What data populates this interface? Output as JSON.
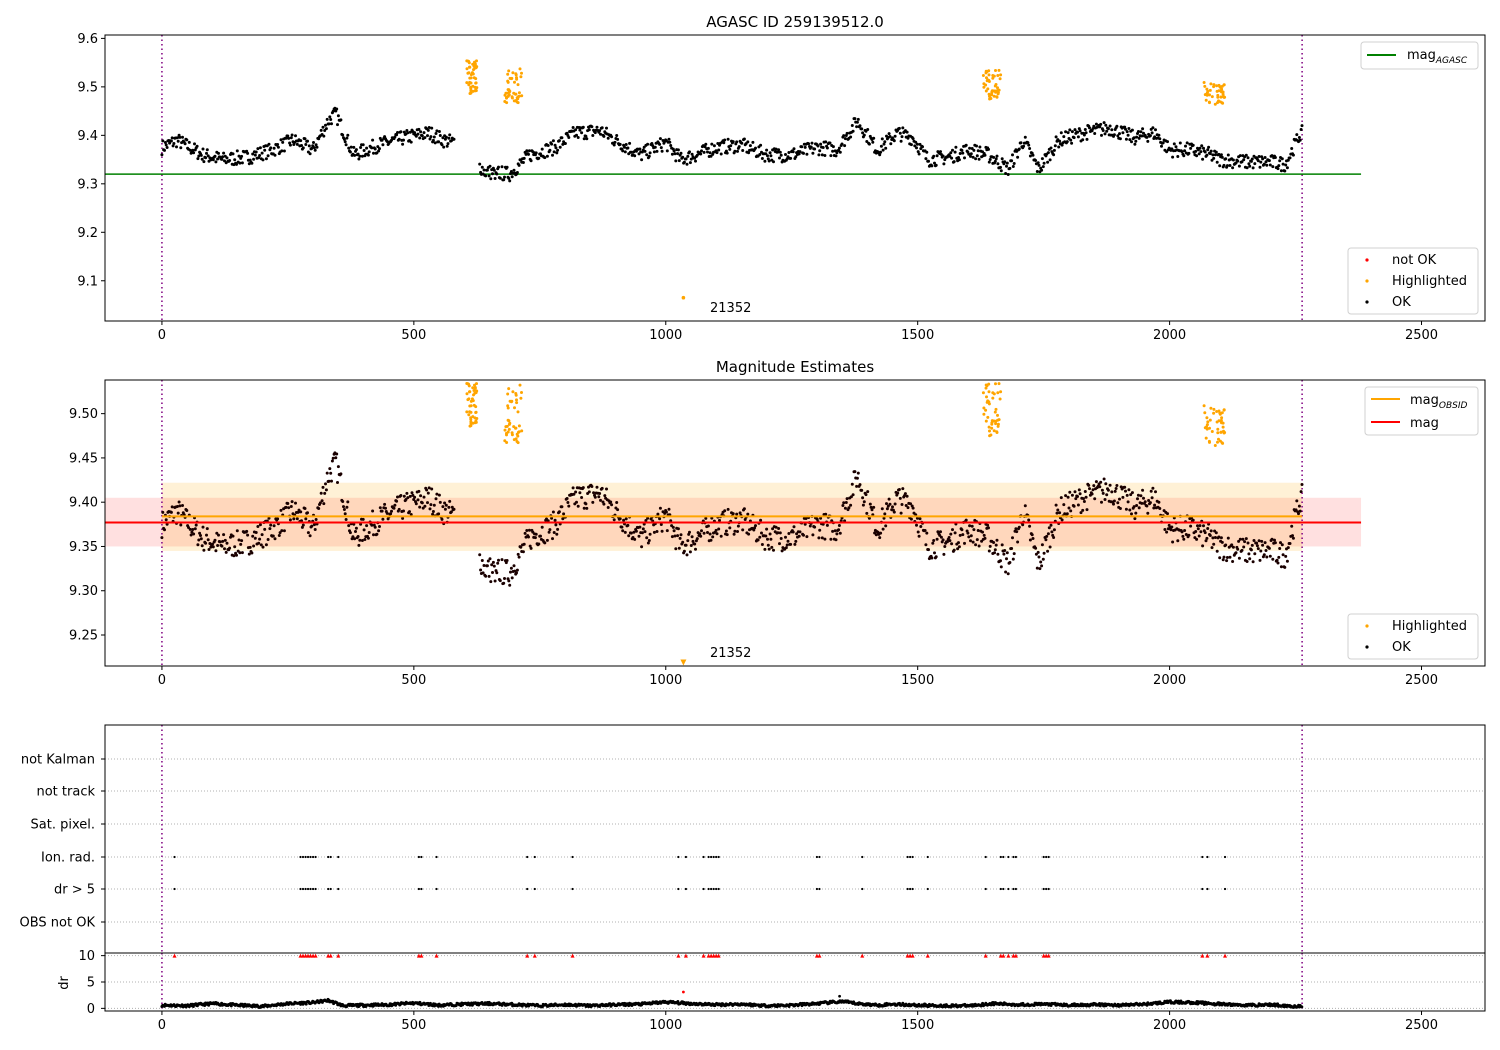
{
  "chart_data": [
    {
      "type": "scatter",
      "title": "AGASC ID 259139512.0",
      "xlabel": "",
      "ylabel": "",
      "xlim": [
        -113,
        2626
      ],
      "ylim": [
        9.017,
        9.607
      ],
      "xticks": [
        0,
        500,
        1000,
        1500,
        2000,
        2500
      ],
      "yticks": [
        9.1,
        9.2,
        9.3,
        9.4,
        9.5,
        9.6
      ],
      "ytick_labels": [
        "9.1",
        "9.2",
        "9.3",
        "9.4",
        "9.5",
        "9.6"
      ],
      "grid": false,
      "vlines": [
        0,
        2263
      ],
      "hline": {
        "name": "mag_AGASC",
        "y": 9.32,
        "x": [
          -113,
          2380
        ],
        "color": "#008000"
      },
      "annotation": {
        "text": "21352",
        "x": 1085,
        "y": 9.046
      },
      "legend_top": {
        "position": "top-right",
        "entries": [
          {
            "label": "mag",
            "sub": "AGASC",
            "color": "#008000"
          }
        ]
      },
      "legend_bottom": {
        "position": "bottom-right",
        "entries": [
          {
            "label": "not OK",
            "color": "#ff0000"
          },
          {
            "label": "Highlighted",
            "color": "#ffa500"
          },
          {
            "label": "OK",
            "color": "#000000"
          }
        ]
      },
      "highlighted_clusters": [
        {
          "x": [
            605,
            625
          ],
          "y": [
            9.485,
            9.555
          ]
        },
        {
          "x": [
            680,
            715
          ],
          "y": [
            9.465,
            9.54
          ]
        },
        {
          "x": [
            1630,
            1665
          ],
          "y": [
            9.475,
            9.535
          ]
        },
        {
          "x": [
            2065,
            2110
          ],
          "y": [
            9.46,
            9.51
          ]
        }
      ],
      "highlighted_outlier": {
        "x": 1035,
        "y": 9.065
      },
      "ok_series": [
        [
          0,
          9.375
        ],
        [
          30,
          9.39
        ],
        [
          80,
          9.36
        ],
        [
          120,
          9.35
        ],
        [
          170,
          9.355
        ],
        [
          220,
          9.37
        ],
        [
          260,
          9.39
        ],
        [
          300,
          9.37
        ],
        [
          330,
          9.43
        ],
        [
          345,
          9.445
        ],
        [
          380,
          9.36
        ],
        [
          430,
          9.38
        ],
        [
          480,
          9.395
        ],
        [
          530,
          9.405
        ],
        [
          560,
          9.39
        ],
        [
          600,
          9.38
        ],
        [
          640,
          9.325
        ],
        [
          690,
          9.32
        ],
        [
          730,
          9.36
        ],
        [
          780,
          9.375
        ],
        [
          820,
          9.405
        ],
        [
          870,
          9.41
        ],
        [
          900,
          9.39
        ],
        [
          950,
          9.36
        ],
        [
          1000,
          9.385
        ],
        [
          1030,
          9.35
        ],
        [
          1060,
          9.36
        ],
        [
          1100,
          9.375
        ],
        [
          1150,
          9.38
        ],
        [
          1200,
          9.36
        ],
        [
          1250,
          9.36
        ],
        [
          1300,
          9.375
        ],
        [
          1340,
          9.37
        ],
        [
          1380,
          9.43
        ],
        [
          1420,
          9.37
        ],
        [
          1460,
          9.405
        ],
        [
          1490,
          9.395
        ],
        [
          1520,
          9.35
        ],
        [
          1560,
          9.355
        ],
        [
          1600,
          9.37
        ],
        [
          1640,
          9.36
        ],
        [
          1680,
          9.33
        ],
        [
          1710,
          9.39
        ],
        [
          1740,
          9.33
        ],
        [
          1780,
          9.39
        ],
        [
          1830,
          9.405
        ],
        [
          1880,
          9.415
        ],
        [
          1930,
          9.395
        ],
        [
          1970,
          9.405
        ],
        [
          2000,
          9.37
        ],
        [
          2040,
          9.37
        ],
        [
          2080,
          9.36
        ],
        [
          2100,
          9.35
        ],
        [
          2150,
          9.345
        ],
        [
          2200,
          9.345
        ],
        [
          2230,
          9.34
        ],
        [
          2260,
          9.405
        ]
      ]
    },
    {
      "type": "scatter",
      "title": "Magnitude Estimates",
      "xlabel": "",
      "ylabel": "",
      "xlim": [
        -113,
        2626
      ],
      "ylim": [
        9.215,
        9.538
      ],
      "xticks": [
        0,
        500,
        1000,
        1500,
        2000,
        2500
      ],
      "yticks": [
        9.25,
        9.3,
        9.35,
        9.4,
        9.45,
        9.5
      ],
      "ytick_labels": [
        "9.25",
        "9.30",
        "9.35",
        "9.40",
        "9.45",
        "9.50"
      ],
      "grid": false,
      "vlines": [
        0,
        2263
      ],
      "mag_obsid": {
        "y": 9.384,
        "band": [
          9.345,
          9.422
        ],
        "x": [
          0,
          2263
        ],
        "color": "#ffa500"
      },
      "mag": {
        "y": 9.377,
        "band": [
          9.35,
          9.405
        ],
        "x": [
          -113,
          2380
        ],
        "color": "#ff0000"
      },
      "annotation": {
        "text": "21352",
        "x": 1085,
        "y": 9.229
      },
      "legend_top": {
        "position": "top-right",
        "entries": [
          {
            "label": "mag",
            "sub": "OBSID",
            "color": "#ffa500"
          },
          {
            "label": "mag",
            "sub": "",
            "color": "#ff0000"
          }
        ]
      },
      "legend_bottom": {
        "position": "bottom-right",
        "entries": [
          {
            "label": "Highlighted",
            "color": "#ffa500"
          },
          {
            "label": "OK",
            "color": "#000000"
          }
        ]
      },
      "highlighted_clusters": [
        {
          "x": [
            605,
            625
          ],
          "y": [
            9.485,
            9.535
          ]
        },
        {
          "x": [
            680,
            715
          ],
          "y": [
            9.465,
            9.535
          ]
        },
        {
          "x": [
            1630,
            1665
          ],
          "y": [
            9.475,
            9.535
          ]
        },
        {
          "x": [
            2065,
            2110
          ],
          "y": [
            9.46,
            9.51
          ]
        }
      ],
      "highlighted_outlier": {
        "x": 1035,
        "y": 9.219
      }
    },
    {
      "type": "scatter",
      "title": "",
      "xlabel": "",
      "xlim": [
        -113,
        2626
      ],
      "xticks": [
        0,
        500,
        1000,
        1500,
        2000,
        2500
      ],
      "flag_rows": [
        "not Kalman",
        "not track",
        "Sat. pixel.",
        "Ion. rad.",
        "dr > 5",
        "OBS not OK"
      ],
      "flag_x": {
        "Ion. rad.": [
          25,
          275,
          280,
          285,
          290,
          295,
          300,
          305,
          330,
          335,
          350,
          510,
          515,
          545,
          725,
          740,
          815,
          1025,
          1040,
          1075,
          1085,
          1090,
          1095,
          1100,
          1105,
          1300,
          1305,
          1390,
          1480,
          1485,
          1490,
          1520,
          1635,
          1665,
          1670,
          1680,
          1690,
          1695,
          1750,
          1755,
          1760,
          2065,
          2075,
          2110
        ],
        "dr > 5": [
          25,
          275,
          280,
          285,
          290,
          295,
          300,
          305,
          330,
          335,
          350,
          510,
          515,
          545,
          725,
          740,
          815,
          1025,
          1040,
          1075,
          1085,
          1090,
          1095,
          1100,
          1105,
          1300,
          1305,
          1390,
          1480,
          1485,
          1490,
          1520,
          1635,
          1665,
          1670,
          1680,
          1690,
          1695,
          1750,
          1755,
          1760,
          2065,
          2075,
          2110
        ]
      },
      "dr": {
        "ylabel": "dr",
        "ylim": [
          -0.5,
          10.5
        ],
        "yticks": [
          0,
          5,
          10
        ],
        "clip_value": 10,
        "clip_x": [
          25,
          275,
          280,
          285,
          290,
          295,
          300,
          305,
          330,
          335,
          350,
          510,
          515,
          545,
          725,
          740,
          815,
          1025,
          1040,
          1075,
          1085,
          1090,
          1095,
          1100,
          1105,
          1300,
          1305,
          1390,
          1480,
          1485,
          1490,
          1520,
          1635,
          1665,
          1670,
          1680,
          1690,
          1695,
          1750,
          1755,
          1760,
          2065,
          2075,
          2110
        ],
        "outliers": [
          [
            1035,
            3.1
          ],
          [
            1345,
            2.3
          ]
        ],
        "series": [
          [
            0,
            0.6
          ],
          [
            50,
            0.5
          ],
          [
            100,
            0.9
          ],
          [
            150,
            0.6
          ],
          [
            200,
            0.4
          ],
          [
            250,
            0.9
          ],
          [
            300,
            1.1
          ],
          [
            330,
            1.5
          ],
          [
            360,
            0.5
          ],
          [
            400,
            0.6
          ],
          [
            450,
            0.7
          ],
          [
            500,
            1.0
          ],
          [
            550,
            0.6
          ],
          [
            600,
            0.8
          ],
          [
            650,
            0.9
          ],
          [
            700,
            0.7
          ],
          [
            750,
            0.5
          ],
          [
            800,
            0.7
          ],
          [
            850,
            0.5
          ],
          [
            900,
            0.7
          ],
          [
            950,
            0.8
          ],
          [
            1000,
            1.2
          ],
          [
            1050,
            0.9
          ],
          [
            1100,
            0.7
          ],
          [
            1150,
            0.8
          ],
          [
            1200,
            0.5
          ],
          [
            1250,
            0.6
          ],
          [
            1300,
            0.9
          ],
          [
            1350,
            1.3
          ],
          [
            1380,
            0.9
          ],
          [
            1420,
            0.6
          ],
          [
            1450,
            0.8
          ],
          [
            1500,
            0.6
          ],
          [
            1550,
            0.5
          ],
          [
            1600,
            0.5
          ],
          [
            1650,
            0.9
          ],
          [
            1700,
            0.7
          ],
          [
            1750,
            0.8
          ],
          [
            1800,
            0.6
          ],
          [
            1850,
            0.7
          ],
          [
            1900,
            0.6
          ],
          [
            1950,
            0.8
          ],
          [
            2000,
            1.2
          ],
          [
            2050,
            1.1
          ],
          [
            2100,
            0.8
          ],
          [
            2150,
            0.6
          ],
          [
            2200,
            0.7
          ],
          [
            2263,
            0.3
          ]
        ]
      }
    }
  ]
}
